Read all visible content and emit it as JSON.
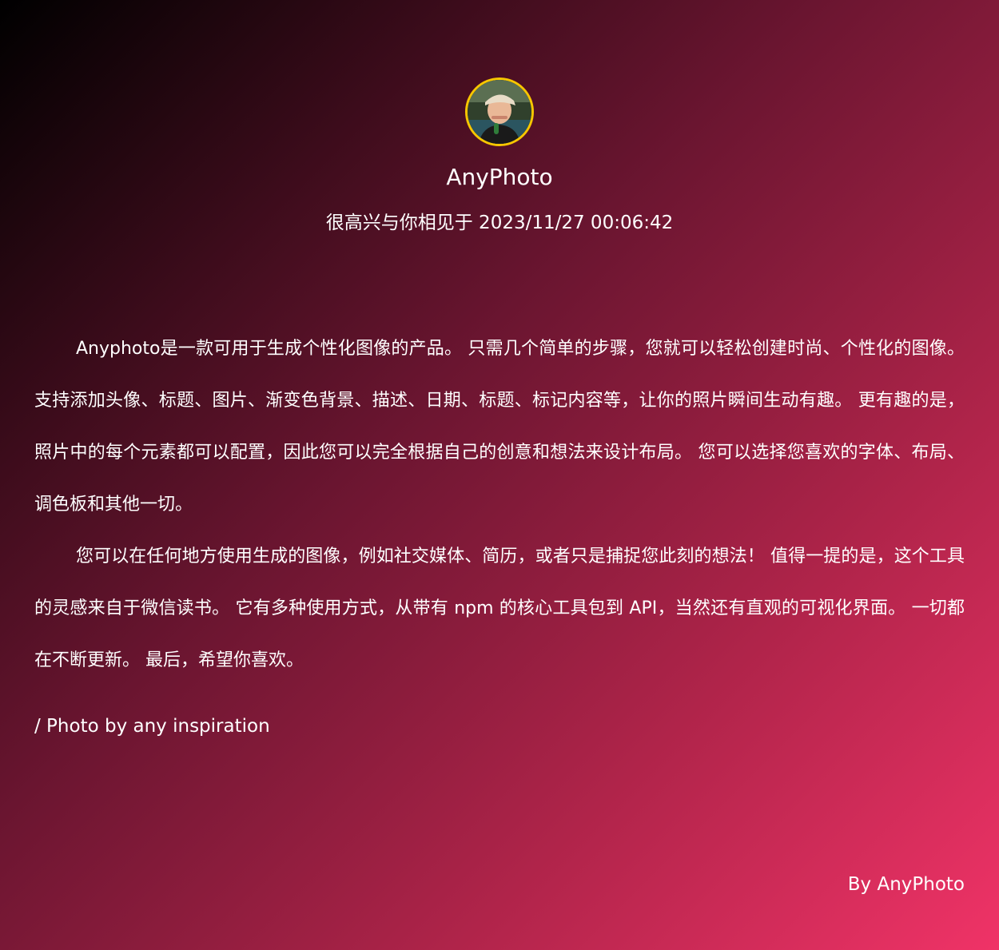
{
  "header": {
    "avatar_icon": "portrait-photo",
    "avatar_border_color": "#f7c600",
    "name": "AnyPhoto",
    "greeting": "很高兴与你相见于 2023/11/27 00:06:42"
  },
  "content": {
    "paragraphs": [
      "Anyphoto是一款可用于生成个性化图像的产品。 只需几个简单的步骤，您就可以轻松创建时尚、个性化的图像。 支持添加头像、标题、图片、渐变色背景、描述、日期、标题、标记内容等，让你的照片瞬间生动有趣。 更有趣的是，照片中的每个元素都可以配置，因此您可以完全根据自己的创意和想法来设计布局。 您可以选择您喜欢的字体、布局、调色板和其他一切。",
      "您可以在任何地方使用生成的图像，例如社交媒体、简历，或者只是捕捉您此刻的想法！ 值得一提的是，这个工具的灵感来自于微信读书。 它有多种使用方式，从带有 npm 的核心工具包到 API，当然还有直观的可视化界面。 一切都在不断更新。 最后，希望你喜欢。"
    ]
  },
  "footer": {
    "photo_credit": "/ Photo by any inspiration",
    "signature": "By AnyPhoto"
  },
  "colors": {
    "gradient_start": "#000000",
    "gradient_mid": "#6a1530",
    "gradient_end": "#f03367",
    "text": "#ffffff"
  }
}
